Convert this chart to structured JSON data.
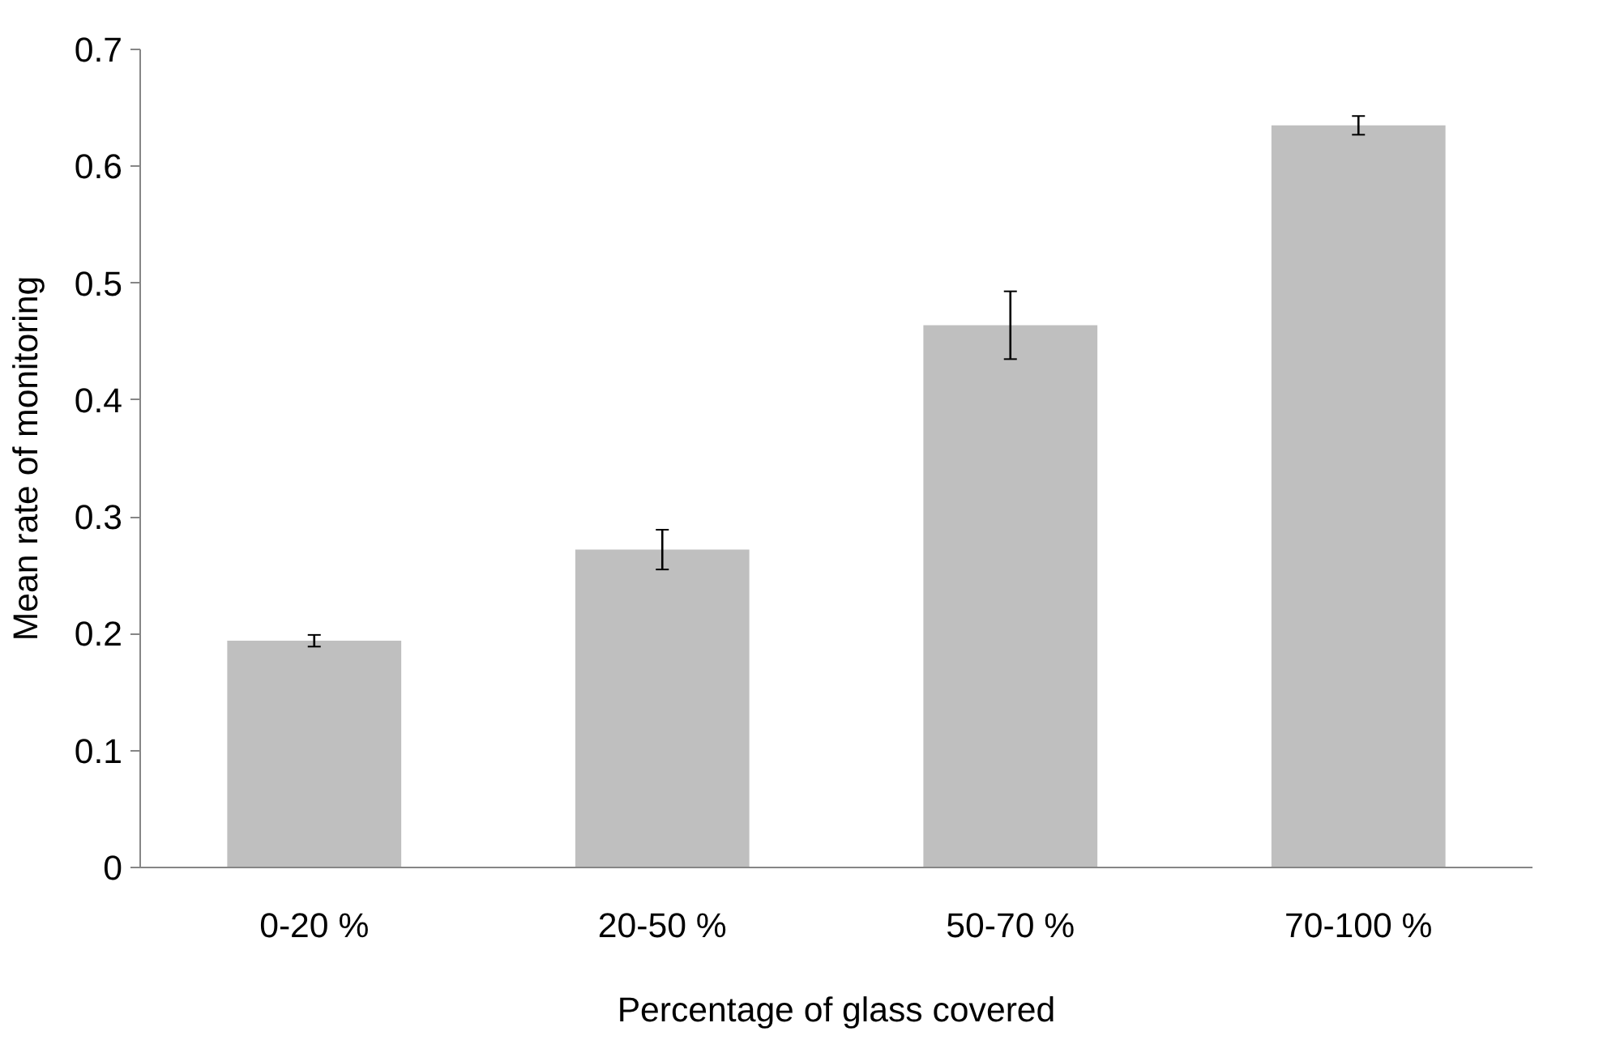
{
  "chart_data": {
    "type": "bar",
    "xlabel": "Percentage of glass covered",
    "ylabel": "Mean rate of monitoring",
    "categories": [
      "0-20 %",
      "20-50 %",
      "50-70 %",
      "70-100 %"
    ],
    "values": [
      0.194,
      0.272,
      0.464,
      0.635
    ],
    "errors": [
      0.005,
      0.017,
      0.029,
      0.008
    ],
    "color": "#bfbfbf",
    "ylim": [
      0,
      0.7
    ],
    "yticks": [
      0,
      {
        "value": 0.1,
        "label": "0.1"
      },
      {
        "value": 0.2,
        "label": "0.2"
      },
      {
        "value": 0.3,
        "label": "0.3"
      },
      {
        "value": 0.4,
        "label": "0.4"
      },
      {
        "value": 0.5,
        "label": "0.5"
      },
      {
        "value": 0.6,
        "label": "0.6"
      },
      {
        "value": 0.7,
        "label": "0.7"
      }
    ],
    "grid": false
  }
}
